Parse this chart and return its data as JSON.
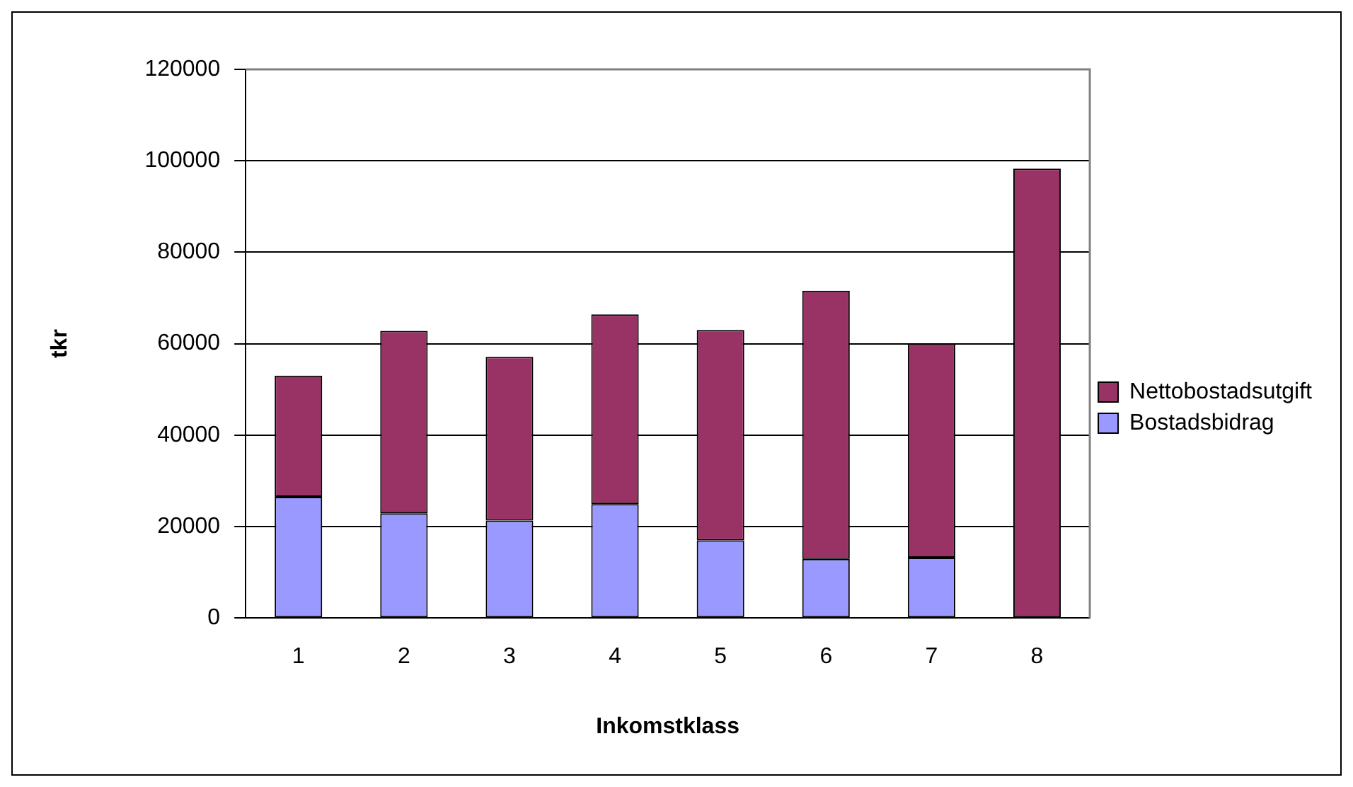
{
  "chart_data": {
    "type": "bar",
    "xlabel": "Inkomstklass",
    "ylabel": "tkr",
    "categories": [
      "1",
      "2",
      "3",
      "4",
      "5",
      "6",
      "7",
      "8"
    ],
    "stacked": true,
    "series": [
      {
        "name": "Bostadsbidrag",
        "color": "#9999ff",
        "values": [
          26500,
          22900,
          21300,
          24900,
          17000,
          12900,
          13200,
          0
        ]
      },
      {
        "name": "Nettobostadsutgift",
        "color": "#993366",
        "values": [
          26500,
          39900,
          35800,
          41500,
          46000,
          58700,
          46900,
          98300
        ]
      }
    ],
    "ylim": [
      0,
      120000
    ],
    "yticks": [
      0,
      20000,
      40000,
      60000,
      80000,
      100000,
      120000
    ],
    "grid": "y",
    "legend": "right"
  }
}
